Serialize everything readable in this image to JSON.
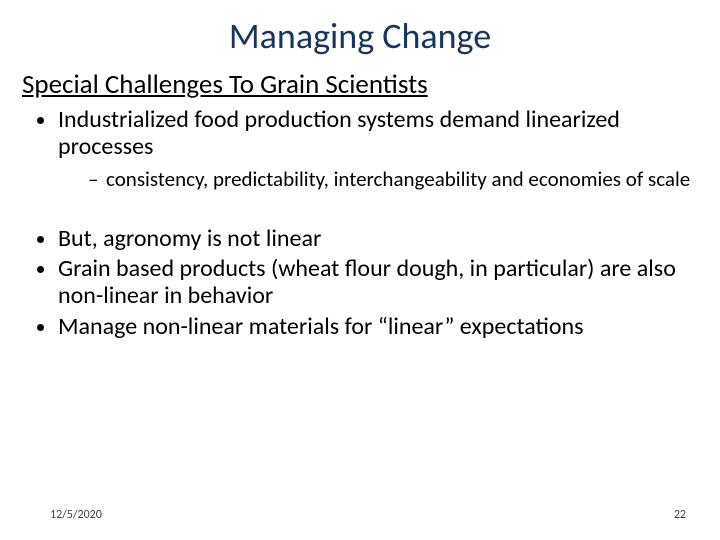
{
  "title": {
    "text": "Managing Change",
    "color": "#17365d",
    "fontsize": 36
  },
  "subtitle": {
    "text": "Special Challenges To Grain Scientists",
    "fontsize": 27
  },
  "bullets_a": [
    {
      "text": "Industrialized food production systems demand linearized processes",
      "sub": [
        "consistency, predictability, interchangeability and  economies of scale"
      ]
    }
  ],
  "bullets_b": [
    {
      "text": "But, agronomy is not linear"
    },
    {
      "text": "Grain based products (wheat flour dough, in particular) are also non-linear in behavior"
    },
    {
      "text": "Manage non-linear materials for “linear” expectations"
    }
  ],
  "footer": {
    "date": "12/5/2020",
    "page": "22"
  },
  "colors": {
    "background": "#ffffff",
    "text": "#000000",
    "title": "#17365d",
    "footer": "#404040"
  }
}
